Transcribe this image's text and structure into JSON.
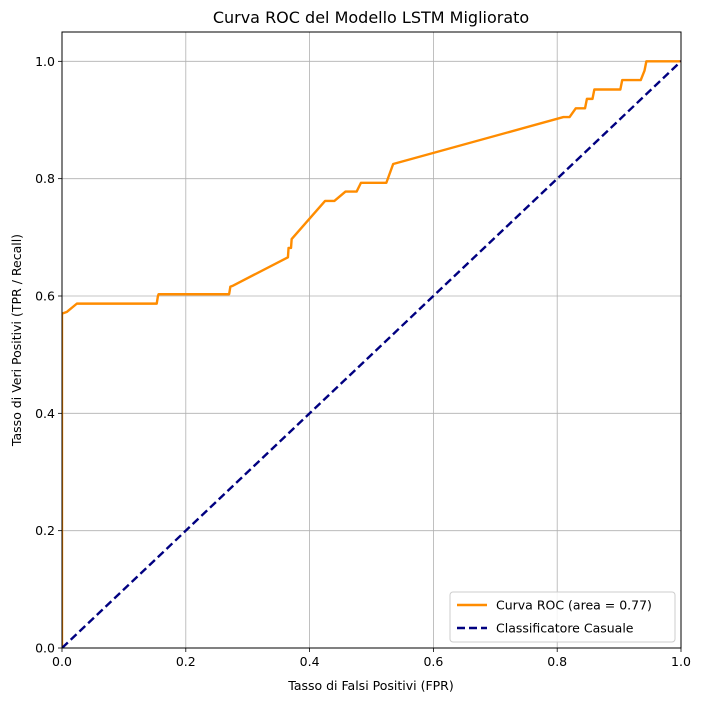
{
  "chart_data": {
    "type": "line",
    "title": "Curva ROC del Modello LSTM Migliorato",
    "xlabel": "Tasso di Falsi Positivi (FPR)",
    "ylabel": "Tasso di Veri Positivi (TPR / Recall)",
    "xlim": [
      0.0,
      1.0
    ],
    "ylim": [
      0.0,
      1.05
    ],
    "xticks": [
      0.0,
      0.2,
      0.4,
      0.6,
      0.8,
      1.0
    ],
    "xtick_labels": [
      "0.0",
      "0.2",
      "0.4",
      "0.6",
      "0.8",
      "1.0"
    ],
    "yticks": [
      0.0,
      0.2,
      0.4,
      0.6,
      0.8,
      1.0
    ],
    "ytick_labels": [
      "0.0",
      "0.2",
      "0.4",
      "0.6",
      "0.8",
      "1.0"
    ],
    "grid": true,
    "legend_position": "lower-right",
    "series": [
      {
        "name": "Curva ROC (area = 0.77)",
        "color": "#ff8c00",
        "style": "solid",
        "x": [
          0.0,
          0.0,
          0.0,
          0.008,
          0.024,
          0.153,
          0.155,
          0.156,
          0.27,
          0.272,
          0.275,
          0.365,
          0.366,
          0.37,
          0.371,
          0.425,
          0.44,
          0.458,
          0.476,
          0.483,
          0.488,
          0.524,
          0.535,
          0.81,
          0.82,
          0.83,
          0.845,
          0.848,
          0.857,
          0.86,
          0.902,
          0.905,
          0.935,
          0.941,
          0.944,
          1.0
        ],
        "y": [
          0.0,
          0.57,
          0.57,
          0.573,
          0.587,
          0.587,
          0.6,
          0.603,
          0.603,
          0.616,
          0.617,
          0.666,
          0.682,
          0.682,
          0.697,
          0.762,
          0.762,
          0.778,
          0.778,
          0.793,
          0.793,
          0.793,
          0.825,
          0.905,
          0.905,
          0.92,
          0.92,
          0.936,
          0.936,
          0.952,
          0.952,
          0.968,
          0.968,
          0.984,
          1.0,
          1.0
        ]
      },
      {
        "name": "Classificatore Casuale",
        "color": "#000080",
        "style": "dashed",
        "x": [
          0.0,
          1.0
        ],
        "y": [
          0.0,
          1.0
        ]
      }
    ]
  }
}
